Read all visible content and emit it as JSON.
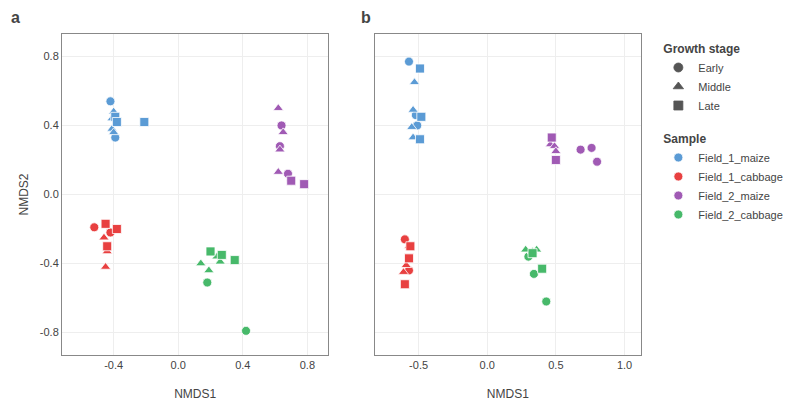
{
  "chart_data": [
    {
      "type": "scatter",
      "title": "a",
      "x_label": "NMDS1",
      "y_label": "NMDS2",
      "grid": true,
      "xlim": [
        -0.72,
        0.93
      ],
      "ylim": [
        -0.93,
        0.93
      ],
      "xticks": [
        -0.4,
        {
          "value": 0.0,
          "label": "0.0"
        },
        0.4,
        0.8
      ],
      "yticks": [
        -0.8,
        -0.4,
        {
          "value": 0.0,
          "label": "0.0"
        },
        0.4,
        0.8
      ],
      "series": [
        {
          "name": "Field_1_maize",
          "stage": "Early",
          "color": "#5B9BD5",
          "marker": "circle",
          "x": [
            -0.42,
            -0.39
          ],
          "values": [
            0.54,
            0.33
          ]
        },
        {
          "name": "Field_1_maize",
          "stage": "Middle",
          "color": "#5B9BD5",
          "marker": "triangle",
          "x": [
            -0.4,
            -0.41,
            -0.41,
            -0.4
          ],
          "values": [
            0.48,
            0.44,
            0.38,
            0.36
          ]
        },
        {
          "name": "Field_1_maize",
          "stage": "Late",
          "color": "#5B9BD5",
          "marker": "square",
          "x": [
            -0.39,
            -0.38,
            -0.21
          ],
          "values": [
            0.45,
            0.42,
            0.42
          ]
        },
        {
          "name": "Field_1_cabbage",
          "stage": "Early",
          "color": "#E84040",
          "marker": "circle",
          "x": [
            -0.52,
            -0.42
          ],
          "values": [
            -0.19,
            -0.22
          ]
        },
        {
          "name": "Field_1_cabbage",
          "stage": "Middle",
          "color": "#E84040",
          "marker": "triangle",
          "x": [
            -0.46,
            -0.44,
            -0.45
          ],
          "values": [
            -0.25,
            -0.33,
            -0.42
          ]
        },
        {
          "name": "Field_1_cabbage",
          "stage": "Late",
          "color": "#E84040",
          "marker": "square",
          "x": [
            -0.45,
            -0.38,
            -0.44
          ],
          "values": [
            -0.17,
            -0.2,
            -0.3
          ]
        },
        {
          "name": "Field_2_maize",
          "stage": "Early",
          "color": "#A05AB4",
          "marker": "circle",
          "x": [
            0.64,
            0.63,
            0.68,
            0.7
          ],
          "values": [
            0.4,
            0.28,
            0.12,
            0.08
          ]
        },
        {
          "name": "Field_2_maize",
          "stage": "Middle",
          "color": "#A05AB4",
          "marker": "triangle",
          "x": [
            0.62,
            0.65,
            0.63,
            0.62
          ],
          "values": [
            0.5,
            0.36,
            0.26,
            0.13
          ]
        },
        {
          "name": "Field_2_maize",
          "stage": "Late",
          "color": "#A05AB4",
          "marker": "square",
          "x": [
            0.7,
            0.78
          ],
          "values": [
            0.08,
            0.06
          ]
        },
        {
          "name": "Field_2_cabbage",
          "stage": "Early",
          "color": "#47B96A",
          "marker": "circle",
          "x": [
            0.18,
            0.42
          ],
          "values": [
            -0.51,
            -0.79
          ]
        },
        {
          "name": "Field_2_cabbage",
          "stage": "Middle",
          "color": "#47B96A",
          "marker": "triangle",
          "x": [
            0.14,
            0.19,
            0.24,
            0.26
          ],
          "values": [
            -0.4,
            -0.44,
            -0.36,
            -0.39
          ]
        },
        {
          "name": "Field_2_cabbage",
          "stage": "Late",
          "color": "#47B96A",
          "marker": "square",
          "x": [
            0.2,
            0.27,
            0.35
          ],
          "values": [
            -0.33,
            -0.35,
            -0.38
          ]
        }
      ]
    },
    {
      "type": "scatter",
      "title": "b",
      "x_label": "NMDS1",
      "grid": true,
      "tick_labels": "x",
      "xlim": [
        -0.82,
        1.12
      ],
      "ylim": [
        -0.93,
        0.93
      ],
      "xticks": [
        -0.5,
        {
          "value": 0.0,
          "label": "0.0"
        },
        0.5,
        {
          "value": 1.0,
          "label": "1.0"
        }
      ],
      "yticks": [
        -0.8,
        -0.4,
        0,
        0.4,
        0.8
      ],
      "series": [
        {
          "name": "Field_1_maize",
          "stage": "Early",
          "color": "#5B9BD5",
          "marker": "circle",
          "x": [
            -0.57,
            -0.52,
            -0.51
          ],
          "values": [
            0.77,
            0.46,
            0.4
          ]
        },
        {
          "name": "Field_1_maize",
          "stage": "Middle",
          "color": "#5B9BD5",
          "marker": "triangle",
          "x": [
            -0.53,
            -0.54,
            -0.55,
            -0.54
          ],
          "values": [
            0.65,
            0.49,
            0.39,
            0.33
          ]
        },
        {
          "name": "Field_1_maize",
          "stage": "Late",
          "color": "#5B9BD5",
          "marker": "square",
          "x": [
            -0.49,
            -0.48,
            -0.49
          ],
          "values": [
            0.73,
            0.45,
            0.32
          ]
        },
        {
          "name": "Field_1_cabbage",
          "stage": "Early",
          "color": "#E84040",
          "marker": "circle",
          "x": [
            -0.6,
            -0.57
          ],
          "values": [
            -0.26,
            -0.44
          ]
        },
        {
          "name": "Field_1_cabbage",
          "stage": "Middle",
          "color": "#E84040",
          "marker": "triangle",
          "x": [
            -0.57,
            -0.59,
            -0.61
          ],
          "values": [
            -0.3,
            -0.41,
            -0.45
          ]
        },
        {
          "name": "Field_1_cabbage",
          "stage": "Late",
          "color": "#E84040",
          "marker": "square",
          "x": [
            -0.56,
            -0.57,
            -0.6
          ],
          "values": [
            -0.3,
            -0.37,
            -0.52
          ]
        },
        {
          "name": "Field_2_maize",
          "stage": "Early",
          "color": "#A05AB4",
          "marker": "circle",
          "x": [
            0.68,
            0.76,
            0.8
          ],
          "values": [
            0.26,
            0.27,
            0.19
          ]
        },
        {
          "name": "Field_2_maize",
          "stage": "Middle",
          "color": "#A05AB4",
          "marker": "triangle",
          "x": [
            0.46,
            0.49,
            0.5
          ],
          "values": [
            0.29,
            0.28,
            0.25
          ]
        },
        {
          "name": "Field_2_maize",
          "stage": "Late",
          "color": "#A05AB4",
          "marker": "square",
          "x": [
            0.47,
            0.5
          ],
          "values": [
            0.33,
            0.2
          ]
        },
        {
          "name": "Field_2_cabbage",
          "stage": "Early",
          "color": "#47B96A",
          "marker": "circle",
          "x": [
            0.43,
            0.3,
            0.34
          ],
          "values": [
            -0.62,
            -0.36,
            -0.46
          ]
        },
        {
          "name": "Field_2_cabbage",
          "stage": "Middle",
          "color": "#47B96A",
          "marker": "triangle",
          "x": [
            0.28,
            0.33,
            0.36
          ],
          "values": [
            -0.32,
            -0.33,
            -0.32
          ]
        },
        {
          "name": "Field_2_cabbage",
          "stage": "Late",
          "color": "#47B96A",
          "marker": "square",
          "x": [
            0.33,
            0.4
          ],
          "values": [
            -0.34,
            -0.43
          ]
        }
      ],
      "legend_groups": [
        {
          "title": "Growth stage",
          "entries": [
            {
              "name": "Early",
              "marker": "circle",
              "color": "#555555"
            },
            {
              "name": "Middle",
              "marker": "triangle",
              "color": "#555555"
            },
            {
              "name": "Late",
              "marker": "square",
              "color": "#555555"
            }
          ]
        },
        {
          "title": "Sample",
          "entries": [
            {
              "name": "Field_1_maize",
              "marker": "circle",
              "color": "#5B9BD5"
            },
            {
              "name": "Field_1_cabbage",
              "marker": "circle",
              "color": "#E84040"
            },
            {
              "name": "Field_2_maize",
              "marker": "circle",
              "color": "#A05AB4"
            },
            {
              "name": "Field_2_cabbage",
              "marker": "circle",
              "color": "#47B96A"
            }
          ]
        }
      ]
    }
  ]
}
